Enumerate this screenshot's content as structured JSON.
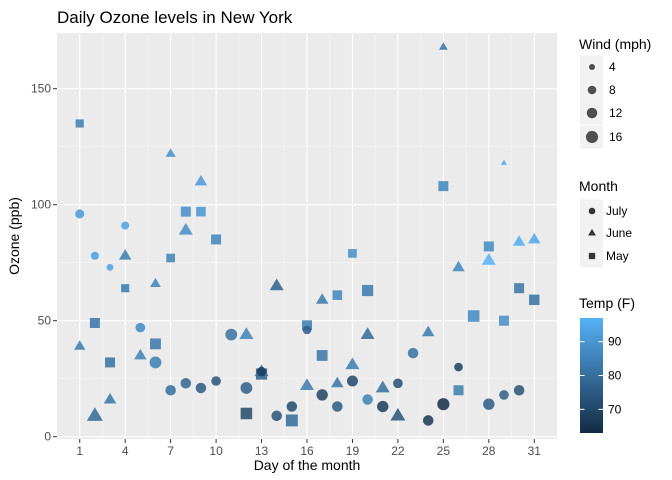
{
  "chart_data": {
    "type": "scatter",
    "title": "Daily Ozone levels in New York",
    "xlabel": "Day of the month",
    "ylabel": "Ozone (ppb)",
    "xlim": [
      -0.5,
      32.5
    ],
    "ylim": [
      -1,
      174
    ],
    "x_ticks": [
      1,
      4,
      7,
      10,
      13,
      16,
      19,
      22,
      25,
      28,
      31
    ],
    "x_tick_labels": [
      "1",
      "4",
      "7",
      "10",
      "13",
      "16",
      "19",
      "22",
      "25",
      "28",
      "31"
    ],
    "y_ticks": [
      0,
      50,
      100,
      150
    ],
    "y_tick_labels": [
      "0",
      "50",
      "100",
      "150"
    ],
    "grid": true,
    "legend_position": "right",
    "color_scale": {
      "low": "#132B43",
      "high": "#56B1F7",
      "min": 63,
      "max": 97
    },
    "legends": {
      "wind": {
        "title": "Wind (mph)",
        "values": [
          4,
          8,
          12,
          16
        ],
        "labels": [
          "4",
          "8",
          "12",
          "16"
        ]
      },
      "month": {
        "title": "Month",
        "items": [
          {
            "label": "July",
            "shape": "circle"
          },
          {
            "label": "June",
            "shape": "triangle"
          },
          {
            "label": "May",
            "shape": "square"
          }
        ]
      },
      "temp": {
        "title": "Temp (F)",
        "ticks": [
          70,
          80,
          90
        ],
        "labels": [
          "70",
          "80",
          "90"
        ]
      }
    },
    "points": [
      {
        "day": 1,
        "ozone": 135,
        "month": "May",
        "wind": 8,
        "temp": 84
      },
      {
        "day": 2,
        "ozone": 49,
        "month": "May",
        "wind": 12,
        "temp": 82
      },
      {
        "day": 3,
        "ozone": 32,
        "month": "May",
        "wind": 12,
        "temp": 81
      },
      {
        "day": 4,
        "ozone": 64,
        "month": "May",
        "wind": 8,
        "temp": 83
      },
      {
        "day": 6,
        "ozone": 40,
        "month": "May",
        "wind": 14,
        "temp": 82
      },
      {
        "day": 7,
        "ozone": 77,
        "month": "May",
        "wind": 9,
        "temp": 85
      },
      {
        "day": 8,
        "ozone": 97,
        "month": "May",
        "wind": 12,
        "temp": 88
      },
      {
        "day": 9,
        "ozone": 97,
        "month": "May",
        "wind": 11,
        "temp": 90
      },
      {
        "day": 10,
        "ozone": 85,
        "month": "May",
        "wind": 12,
        "temp": 86
      },
      {
        "day": 12,
        "ozone": 10,
        "month": "May",
        "wind": 16,
        "temp": 71
      },
      {
        "day": 13,
        "ozone": 27,
        "month": "May",
        "wind": 15,
        "temp": 77
      },
      {
        "day": 15,
        "ozone": 7,
        "month": "May",
        "wind": 17,
        "temp": 79
      },
      {
        "day": 16,
        "ozone": 48,
        "month": "May",
        "wind": 12,
        "temp": 84
      },
      {
        "day": 17,
        "ozone": 35,
        "month": "May",
        "wind": 14,
        "temp": 82
      },
      {
        "day": 18,
        "ozone": 61,
        "month": "May",
        "wind": 11,
        "temp": 86
      },
      {
        "day": 19,
        "ozone": 79,
        "month": "May",
        "wind": 9,
        "temp": 88
      },
      {
        "day": 20,
        "ozone": 63,
        "month": "May",
        "wind": 15,
        "temp": 83
      },
      {
        "day": 25,
        "ozone": 108,
        "month": "May",
        "wind": 12,
        "temp": 86
      },
      {
        "day": 26,
        "ozone": 20,
        "month": "May",
        "wind": 12,
        "temp": 84
      },
      {
        "day": 27,
        "ozone": 52,
        "month": "May",
        "wind": 16,
        "temp": 87
      },
      {
        "day": 28,
        "ozone": 82,
        "month": "May",
        "wind": 12,
        "temp": 87
      },
      {
        "day": 29,
        "ozone": 50,
        "month": "May",
        "wind": 12,
        "temp": 88
      },
      {
        "day": 30,
        "ozone": 64,
        "month": "May",
        "wind": 12,
        "temp": 82
      },
      {
        "day": 31,
        "ozone": 59,
        "month": "May",
        "wind": 13,
        "temp": 81
      },
      {
        "day": 1,
        "ozone": 39,
        "month": "June",
        "wind": 10,
        "temp": 83
      },
      {
        "day": 2,
        "ozone": 9,
        "month": "June",
        "wind": 20,
        "temp": 79
      },
      {
        "day": 3,
        "ozone": 16,
        "month": "June",
        "wind": 12,
        "temp": 82
      },
      {
        "day": 4,
        "ozone": 78,
        "month": "June",
        "wind": 12,
        "temp": 84
      },
      {
        "day": 5,
        "ozone": 35,
        "month": "June",
        "wind": 12,
        "temp": 85
      },
      {
        "day": 6,
        "ozone": 66,
        "month": "June",
        "wind": 9,
        "temp": 85
      },
      {
        "day": 7,
        "ozone": 122,
        "month": "June",
        "wind": 8,
        "temp": 89
      },
      {
        "day": 8,
        "ozone": 89,
        "month": "June",
        "wind": 15,
        "temp": 88
      },
      {
        "day": 9,
        "ozone": 110,
        "month": "June",
        "wind": 12,
        "temp": 91
      },
      {
        "day": 12,
        "ozone": 44,
        "month": "June",
        "wind": 15,
        "temp": 85
      },
      {
        "day": 13,
        "ozone": 28,
        "month": "June",
        "wind": 15,
        "temp": 82
      },
      {
        "day": 14,
        "ozone": 65,
        "month": "June",
        "wind": 15,
        "temp": 77
      },
      {
        "day": 16,
        "ozone": 22,
        "month": "June",
        "wind": 15,
        "temp": 83
      },
      {
        "day": 17,
        "ozone": 59,
        "month": "June",
        "wind": 12,
        "temp": 83
      },
      {
        "day": 18,
        "ozone": 23,
        "month": "June",
        "wind": 12,
        "temp": 82
      },
      {
        "day": 19,
        "ozone": 31,
        "month": "June",
        "wind": 15,
        "temp": 84
      },
      {
        "day": 20,
        "ozone": 44,
        "month": "June",
        "wind": 15,
        "temp": 79
      },
      {
        "day": 21,
        "ozone": 21,
        "month": "June",
        "wind": 15,
        "temp": 80
      },
      {
        "day": 22,
        "ozone": 9,
        "month": "June",
        "wind": 17,
        "temp": 73
      },
      {
        "day": 24,
        "ozone": 45,
        "month": "June",
        "wind": 12,
        "temp": 83
      },
      {
        "day": 25,
        "ozone": 168,
        "month": "June",
        "wind": 6,
        "temp": 81
      },
      {
        "day": 26,
        "ozone": 73,
        "month": "June",
        "wind": 12,
        "temp": 86
      },
      {
        "day": 28,
        "ozone": 76,
        "month": "June",
        "wind": 15,
        "temp": 97
      },
      {
        "day": 29,
        "ozone": 118,
        "month": "June",
        "wind": 3,
        "temp": 94
      },
      {
        "day": 30,
        "ozone": 84,
        "month": "June",
        "wind": 12,
        "temp": 96
      },
      {
        "day": 31,
        "ozone": 85,
        "month": "June",
        "wind": 12,
        "temp": 94
      },
      {
        "day": 1,
        "ozone": 96,
        "month": "July",
        "wind": 9,
        "temp": 91
      },
      {
        "day": 2,
        "ozone": 78,
        "month": "July",
        "wind": 7,
        "temp": 92
      },
      {
        "day": 3,
        "ozone": 73,
        "month": "July",
        "wind": 5,
        "temp": 93
      },
      {
        "day": 4,
        "ozone": 91,
        "month": "July",
        "wind": 7,
        "temp": 93
      },
      {
        "day": 5,
        "ozone": 47,
        "month": "July",
        "wind": 10,
        "temp": 87
      },
      {
        "day": 6,
        "ozone": 32,
        "month": "July",
        "wind": 15,
        "temp": 84
      },
      {
        "day": 7,
        "ozone": 20,
        "month": "July",
        "wind": 12,
        "temp": 80
      },
      {
        "day": 8,
        "ozone": 23,
        "month": "July",
        "wind": 12,
        "temp": 78
      },
      {
        "day": 9,
        "ozone": 21,
        "month": "July",
        "wind": 12,
        "temp": 75
      },
      {
        "day": 10,
        "ozone": 24,
        "month": "July",
        "wind": 10,
        "temp": 73
      },
      {
        "day": 11,
        "ozone": 44,
        "month": "July",
        "wind": 15,
        "temp": 81
      },
      {
        "day": 12,
        "ozone": 21,
        "month": "July",
        "wind": 15,
        "temp": 76
      },
      {
        "day": 13,
        "ozone": 28,
        "month": "July",
        "wind": 10,
        "temp": 68
      },
      {
        "day": 14,
        "ozone": 9,
        "month": "July",
        "wind": 12,
        "temp": 73
      },
      {
        "day": 15,
        "ozone": 13,
        "month": "July",
        "wind": 12,
        "temp": 71
      },
      {
        "day": 16,
        "ozone": 46,
        "month": "July",
        "wind": 8,
        "temp": 76
      },
      {
        "day": 17,
        "ozone": 18,
        "month": "July",
        "wind": 14,
        "temp": 69
      },
      {
        "day": 18,
        "ozone": 13,
        "month": "July",
        "wind": 12,
        "temp": 75
      },
      {
        "day": 19,
        "ozone": 24,
        "month": "July",
        "wind": 13,
        "temp": 70
      },
      {
        "day": 20,
        "ozone": 16,
        "month": "July",
        "wind": 12,
        "temp": 85
      },
      {
        "day": 21,
        "ozone": 13,
        "month": "July",
        "wind": 14,
        "temp": 67
      },
      {
        "day": 22,
        "ozone": 23,
        "month": "July",
        "wind": 10,
        "temp": 72
      },
      {
        "day": 23,
        "ozone": 36,
        "month": "July",
        "wind": 12,
        "temp": 81
      },
      {
        "day": 24,
        "ozone": 7,
        "month": "July",
        "wind": 12,
        "temp": 66
      },
      {
        "day": 25,
        "ozone": 14,
        "month": "July",
        "wind": 16,
        "temp": 63
      },
      {
        "day": 26,
        "ozone": 30,
        "month": "July",
        "wind": 8,
        "temp": 68
      },
      {
        "day": 28,
        "ozone": 14,
        "month": "July",
        "wind": 14,
        "temp": 75
      },
      {
        "day": 29,
        "ozone": 18,
        "month": "July",
        "wind": 10,
        "temp": 76
      },
      {
        "day": 30,
        "ozone": 20,
        "month": "July",
        "wind": 12,
        "temp": 73
      }
    ]
  }
}
